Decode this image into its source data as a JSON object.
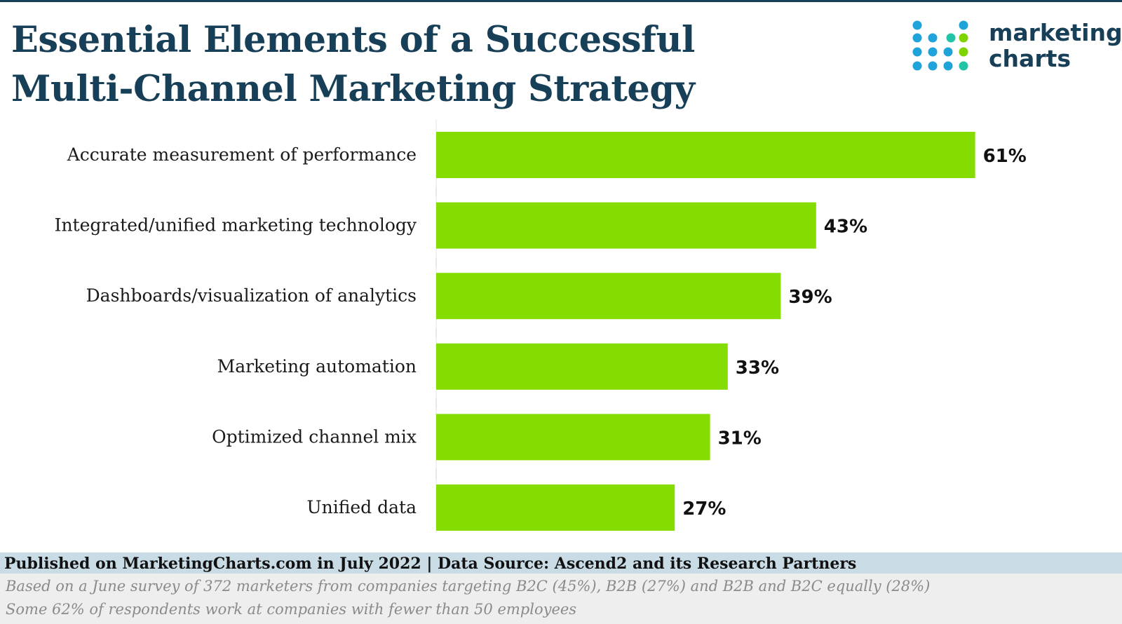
{
  "header": {
    "title_line1": "Essential Elements of a Successful",
    "title_line2": "Multi-Channel Marketing Strategy"
  },
  "logo": {
    "line1": "marketing",
    "line2": "charts",
    "icon": "dot-grid-icon",
    "colors": [
      "#1fa3d8",
      "#7fd400",
      "#21c4a6"
    ]
  },
  "chart_data": {
    "type": "bar",
    "orientation": "horizontal",
    "categories": [
      "Accurate measurement of performance",
      "Integrated/unified marketing technology",
      "Dashboards/visualization of analytics",
      "Marketing automation",
      "Optimized channel mix",
      "Unified data"
    ],
    "values": [
      61,
      43,
      39,
      33,
      31,
      27
    ],
    "value_labels": [
      "61%",
      "43%",
      "39%",
      "33%",
      "31%",
      "27%"
    ],
    "xlim": [
      0,
      100
    ],
    "bar_color": "#84dc00",
    "grid": false
  },
  "footer": {
    "source": "Published on MarketingCharts.com in July 2022 | Data Source: Ascend2 and its Research Partners",
    "note1": "Based on a June survey of 372 marketers from companies targeting B2C (45%), B2B (27%) and B2B and B2C equally (28%)",
    "note2": "Some 62% of respondents work at companies with fewer than 50 employees"
  }
}
